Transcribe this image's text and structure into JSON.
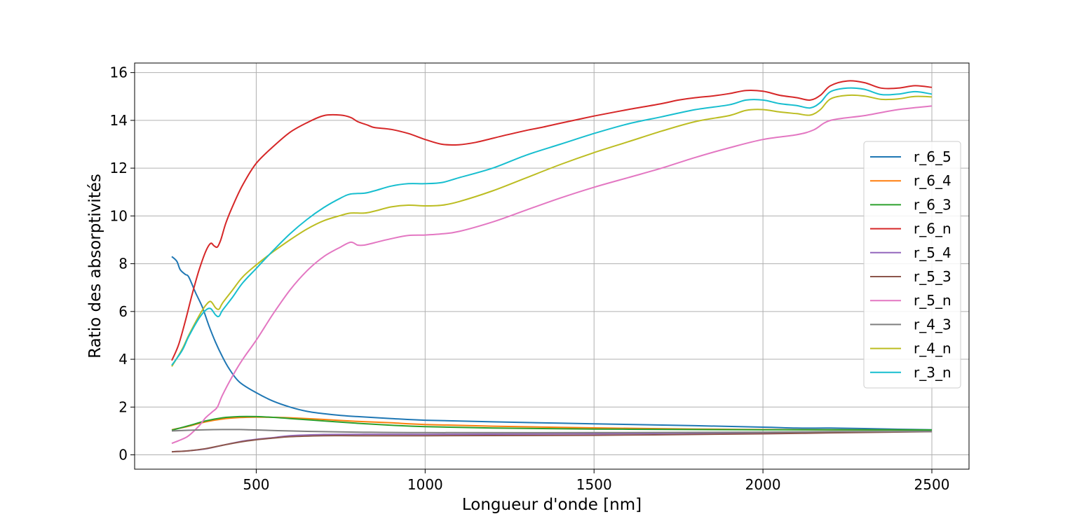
{
  "chart_data": {
    "type": "line",
    "title": "",
    "xlabel": "Longueur d'onde [nm]",
    "ylabel": "Ratio des absorptivités",
    "xlim": [
      140,
      2610
    ],
    "ylim": [
      -0.6,
      16.4
    ],
    "xticks": [
      500,
      1000,
      1500,
      2000,
      2500
    ],
    "yticks": [
      0,
      2,
      4,
      6,
      8,
      10,
      12,
      14,
      16
    ],
    "grid": true,
    "legend_position": "center-right",
    "series": [
      {
        "name": "r_6_5",
        "color": "#1f77b4",
        "points": [
          [
            250,
            8.3
          ],
          [
            265,
            8.1
          ],
          [
            275,
            7.75
          ],
          [
            290,
            7.55
          ],
          [
            300,
            7.45
          ],
          [
            320,
            6.8
          ],
          [
            340,
            6.2
          ],
          [
            360,
            5.4
          ],
          [
            380,
            4.7
          ],
          [
            400,
            4.1
          ],
          [
            420,
            3.6
          ],
          [
            450,
            3.05
          ],
          [
            500,
            2.6
          ],
          [
            550,
            2.25
          ],
          [
            600,
            2.0
          ],
          [
            650,
            1.82
          ],
          [
            700,
            1.72
          ],
          [
            750,
            1.65
          ],
          [
            800,
            1.6
          ],
          [
            900,
            1.52
          ],
          [
            1000,
            1.45
          ],
          [
            1200,
            1.38
          ],
          [
            1500,
            1.3
          ],
          [
            1800,
            1.22
          ],
          [
            2000,
            1.16
          ],
          [
            2100,
            1.12
          ],
          [
            2200,
            1.12
          ],
          [
            2300,
            1.1
          ],
          [
            2400,
            1.07
          ],
          [
            2500,
            1.05
          ]
        ]
      },
      {
        "name": "r_6_4",
        "color": "#ff7f0e",
        "points": [
          [
            250,
            1.05
          ],
          [
            300,
            1.2
          ],
          [
            350,
            1.38
          ],
          [
            400,
            1.5
          ],
          [
            450,
            1.56
          ],
          [
            500,
            1.58
          ],
          [
            550,
            1.57
          ],
          [
            600,
            1.55
          ],
          [
            700,
            1.48
          ],
          [
            800,
            1.4
          ],
          [
            900,
            1.34
          ],
          [
            1000,
            1.27
          ],
          [
            1200,
            1.2
          ],
          [
            1500,
            1.13
          ],
          [
            1800,
            1.08
          ],
          [
            2000,
            1.06
          ],
          [
            2200,
            1.05
          ],
          [
            2500,
            1.04
          ]
        ]
      },
      {
        "name": "r_6_3",
        "color": "#2ca02c",
        "points": [
          [
            250,
            1.03
          ],
          [
            300,
            1.22
          ],
          [
            350,
            1.42
          ],
          [
            400,
            1.55
          ],
          [
            450,
            1.6
          ],
          [
            500,
            1.6
          ],
          [
            550,
            1.57
          ],
          [
            600,
            1.52
          ],
          [
            700,
            1.42
          ],
          [
            800,
            1.32
          ],
          [
            900,
            1.24
          ],
          [
            1000,
            1.18
          ],
          [
            1200,
            1.12
          ],
          [
            1500,
            1.08
          ],
          [
            1800,
            1.06
          ],
          [
            2000,
            1.05
          ],
          [
            2200,
            1.05
          ],
          [
            2500,
            1.04
          ]
        ]
      },
      {
        "name": "r_6_n",
        "color": "#d62728",
        "points": [
          [
            250,
            3.95
          ],
          [
            270,
            4.6
          ],
          [
            290,
            5.6
          ],
          [
            310,
            6.7
          ],
          [
            330,
            7.7
          ],
          [
            350,
            8.5
          ],
          [
            365,
            8.85
          ],
          [
            375,
            8.75
          ],
          [
            385,
            8.7
          ],
          [
            395,
            9.0
          ],
          [
            410,
            9.7
          ],
          [
            430,
            10.4
          ],
          [
            460,
            11.3
          ],
          [
            500,
            12.2
          ],
          [
            550,
            12.9
          ],
          [
            600,
            13.5
          ],
          [
            650,
            13.9
          ],
          [
            700,
            14.2
          ],
          [
            750,
            14.22
          ],
          [
            780,
            14.12
          ],
          [
            800,
            13.95
          ],
          [
            830,
            13.8
          ],
          [
            850,
            13.7
          ],
          [
            900,
            13.62
          ],
          [
            950,
            13.45
          ],
          [
            1000,
            13.2
          ],
          [
            1050,
            13.0
          ],
          [
            1100,
            12.98
          ],
          [
            1150,
            13.08
          ],
          [
            1200,
            13.25
          ],
          [
            1250,
            13.42
          ],
          [
            1300,
            13.58
          ],
          [
            1350,
            13.72
          ],
          [
            1400,
            13.88
          ],
          [
            1500,
            14.18
          ],
          [
            1600,
            14.45
          ],
          [
            1700,
            14.7
          ],
          [
            1750,
            14.85
          ],
          [
            1800,
            14.95
          ],
          [
            1850,
            15.02
          ],
          [
            1900,
            15.12
          ],
          [
            1950,
            15.25
          ],
          [
            2000,
            15.22
          ],
          [
            2050,
            15.05
          ],
          [
            2100,
            14.95
          ],
          [
            2140,
            14.85
          ],
          [
            2170,
            15.05
          ],
          [
            2200,
            15.45
          ],
          [
            2250,
            15.65
          ],
          [
            2300,
            15.58
          ],
          [
            2350,
            15.35
          ],
          [
            2400,
            15.35
          ],
          [
            2450,
            15.45
          ],
          [
            2500,
            15.38
          ]
        ]
      },
      {
        "name": "r_5_4",
        "color": "#9467bd",
        "points": [
          [
            250,
            0.13
          ],
          [
            300,
            0.17
          ],
          [
            350,
            0.25
          ],
          [
            400,
            0.4
          ],
          [
            450,
            0.55
          ],
          [
            500,
            0.65
          ],
          [
            550,
            0.72
          ],
          [
            600,
            0.8
          ],
          [
            700,
            0.85
          ],
          [
            800,
            0.86
          ],
          [
            1000,
            0.86
          ],
          [
            1500,
            0.88
          ],
          [
            2000,
            0.93
          ],
          [
            2200,
            0.95
          ],
          [
            2500,
            0.98
          ]
        ]
      },
      {
        "name": "r_5_3",
        "color": "#8c564b",
        "points": [
          [
            250,
            0.13
          ],
          [
            300,
            0.17
          ],
          [
            350,
            0.26
          ],
          [
            400,
            0.4
          ],
          [
            450,
            0.53
          ],
          [
            500,
            0.63
          ],
          [
            550,
            0.7
          ],
          [
            600,
            0.76
          ],
          [
            700,
            0.8
          ],
          [
            800,
            0.8
          ],
          [
            1000,
            0.8
          ],
          [
            1500,
            0.82
          ],
          [
            2000,
            0.88
          ],
          [
            2200,
            0.92
          ],
          [
            2500,
            0.97
          ]
        ]
      },
      {
        "name": "r_5_n",
        "color": "#e377c2",
        "points": [
          [
            250,
            0.48
          ],
          [
            280,
            0.65
          ],
          [
            300,
            0.8
          ],
          [
            330,
            1.2
          ],
          [
            350,
            1.55
          ],
          [
            370,
            1.8
          ],
          [
            385,
            2.0
          ],
          [
            400,
            2.5
          ],
          [
            430,
            3.3
          ],
          [
            460,
            4.0
          ],
          [
            500,
            4.8
          ],
          [
            550,
            5.9
          ],
          [
            600,
            6.9
          ],
          [
            650,
            7.7
          ],
          [
            700,
            8.3
          ],
          [
            750,
            8.7
          ],
          [
            780,
            8.9
          ],
          [
            800,
            8.78
          ],
          [
            820,
            8.78
          ],
          [
            850,
            8.88
          ],
          [
            900,
            9.05
          ],
          [
            950,
            9.18
          ],
          [
            1000,
            9.2
          ],
          [
            1050,
            9.25
          ],
          [
            1100,
            9.35
          ],
          [
            1200,
            9.75
          ],
          [
            1300,
            10.25
          ],
          [
            1400,
            10.75
          ],
          [
            1500,
            11.2
          ],
          [
            1600,
            11.6
          ],
          [
            1700,
            12.0
          ],
          [
            1800,
            12.45
          ],
          [
            1900,
            12.85
          ],
          [
            2000,
            13.2
          ],
          [
            2100,
            13.4
          ],
          [
            2150,
            13.6
          ],
          [
            2200,
            14.0
          ],
          [
            2300,
            14.2
          ],
          [
            2400,
            14.45
          ],
          [
            2500,
            14.6
          ]
        ]
      },
      {
        "name": "r_4_3",
        "color": "#7f7f7f",
        "points": [
          [
            250,
            1.0
          ],
          [
            300,
            1.03
          ],
          [
            350,
            1.05
          ],
          [
            400,
            1.06
          ],
          [
            450,
            1.06
          ],
          [
            500,
            1.04
          ],
          [
            600,
            1.0
          ],
          [
            700,
            0.97
          ],
          [
            800,
            0.95
          ],
          [
            1000,
            0.93
          ],
          [
            1500,
            0.93
          ],
          [
            2000,
            0.95
          ],
          [
            2200,
            0.97
          ],
          [
            2500,
            0.98
          ]
        ]
      },
      {
        "name": "r_4_n",
        "color": "#bcbd22",
        "points": [
          [
            250,
            3.7
          ],
          [
            280,
            4.4
          ],
          [
            300,
            5.0
          ],
          [
            330,
            5.8
          ],
          [
            350,
            6.25
          ],
          [
            365,
            6.42
          ],
          [
            380,
            6.15
          ],
          [
            390,
            6.1
          ],
          [
            400,
            6.35
          ],
          [
            430,
            6.9
          ],
          [
            460,
            7.45
          ],
          [
            500,
            7.95
          ],
          [
            550,
            8.5
          ],
          [
            600,
            9.0
          ],
          [
            650,
            9.45
          ],
          [
            700,
            9.8
          ],
          [
            750,
            10.02
          ],
          [
            780,
            10.12
          ],
          [
            820,
            10.12
          ],
          [
            850,
            10.2
          ],
          [
            900,
            10.38
          ],
          [
            950,
            10.45
          ],
          [
            1000,
            10.42
          ],
          [
            1050,
            10.45
          ],
          [
            1100,
            10.6
          ],
          [
            1200,
            11.05
          ],
          [
            1300,
            11.6
          ],
          [
            1400,
            12.15
          ],
          [
            1500,
            12.65
          ],
          [
            1600,
            13.1
          ],
          [
            1700,
            13.55
          ],
          [
            1800,
            13.95
          ],
          [
            1900,
            14.2
          ],
          [
            1950,
            14.42
          ],
          [
            2000,
            14.45
          ],
          [
            2050,
            14.35
          ],
          [
            2100,
            14.28
          ],
          [
            2140,
            14.22
          ],
          [
            2170,
            14.45
          ],
          [
            2200,
            14.9
          ],
          [
            2250,
            15.05
          ],
          [
            2300,
            15.02
          ],
          [
            2350,
            14.88
          ],
          [
            2400,
            14.9
          ],
          [
            2450,
            15.0
          ],
          [
            2500,
            14.98
          ]
        ]
      },
      {
        "name": "r_3_n",
        "color": "#17becf",
        "points": [
          [
            250,
            3.75
          ],
          [
            280,
            4.35
          ],
          [
            300,
            4.95
          ],
          [
            330,
            5.7
          ],
          [
            350,
            6.05
          ],
          [
            365,
            6.12
          ],
          [
            380,
            5.85
          ],
          [
            390,
            5.8
          ],
          [
            400,
            6.05
          ],
          [
            430,
            6.6
          ],
          [
            460,
            7.2
          ],
          [
            500,
            7.8
          ],
          [
            550,
            8.55
          ],
          [
            600,
            9.25
          ],
          [
            650,
            9.85
          ],
          [
            700,
            10.35
          ],
          [
            750,
            10.75
          ],
          [
            780,
            10.92
          ],
          [
            820,
            10.95
          ],
          [
            850,
            11.05
          ],
          [
            900,
            11.25
          ],
          [
            950,
            11.35
          ],
          [
            1000,
            11.35
          ],
          [
            1050,
            11.4
          ],
          [
            1100,
            11.6
          ],
          [
            1200,
            12.0
          ],
          [
            1300,
            12.55
          ],
          [
            1400,
            13.0
          ],
          [
            1500,
            13.45
          ],
          [
            1600,
            13.85
          ],
          [
            1700,
            14.15
          ],
          [
            1800,
            14.45
          ],
          [
            1900,
            14.65
          ],
          [
            1950,
            14.85
          ],
          [
            2000,
            14.85
          ],
          [
            2050,
            14.7
          ],
          [
            2100,
            14.62
          ],
          [
            2140,
            14.52
          ],
          [
            2170,
            14.75
          ],
          [
            2200,
            15.2
          ],
          [
            2250,
            15.35
          ],
          [
            2300,
            15.3
          ],
          [
            2350,
            15.08
          ],
          [
            2400,
            15.1
          ],
          [
            2450,
            15.2
          ],
          [
            2500,
            15.1
          ]
        ]
      }
    ]
  }
}
